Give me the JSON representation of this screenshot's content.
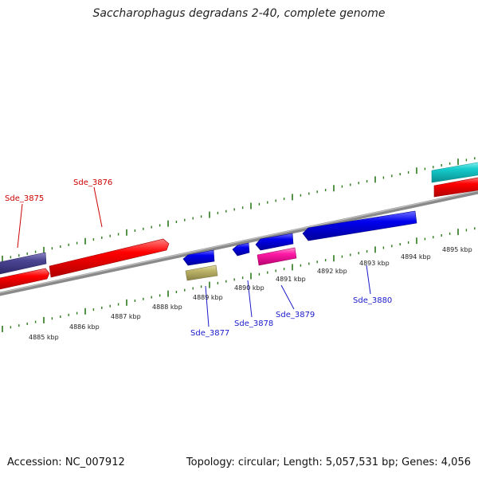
{
  "title": "Saccharophagus degradans 2-40, complete genome",
  "footer": {
    "accession": "Accession: NC_007912",
    "summary": "Topology: circular; Length: 5,057,531 bp; Genes: 4,056"
  },
  "colors": {
    "backbone": "#888888",
    "tick": "#2a7a1a",
    "label_forward": "#cc0000",
    "label_reverse": "#1a1acc"
  },
  "ruler_labels": [
    "4885 kbp",
    "4886 kbp",
    "4887 kbp",
    "4888 kbp",
    "4889 kbp",
    "4890 kbp",
    "4891 kbp",
    "4892 kbp",
    "4893 kbp",
    "4894 kbp",
    "4895 kbp"
  ],
  "gene_labels": {
    "sde_3875": "Sde_3875",
    "sde_3876": "Sde_3876",
    "sde_3877": "Sde_3877",
    "sde_3878": "Sde_3878",
    "sde_3879": "Sde_3879",
    "sde_3880": "Sde_3880"
  }
}
